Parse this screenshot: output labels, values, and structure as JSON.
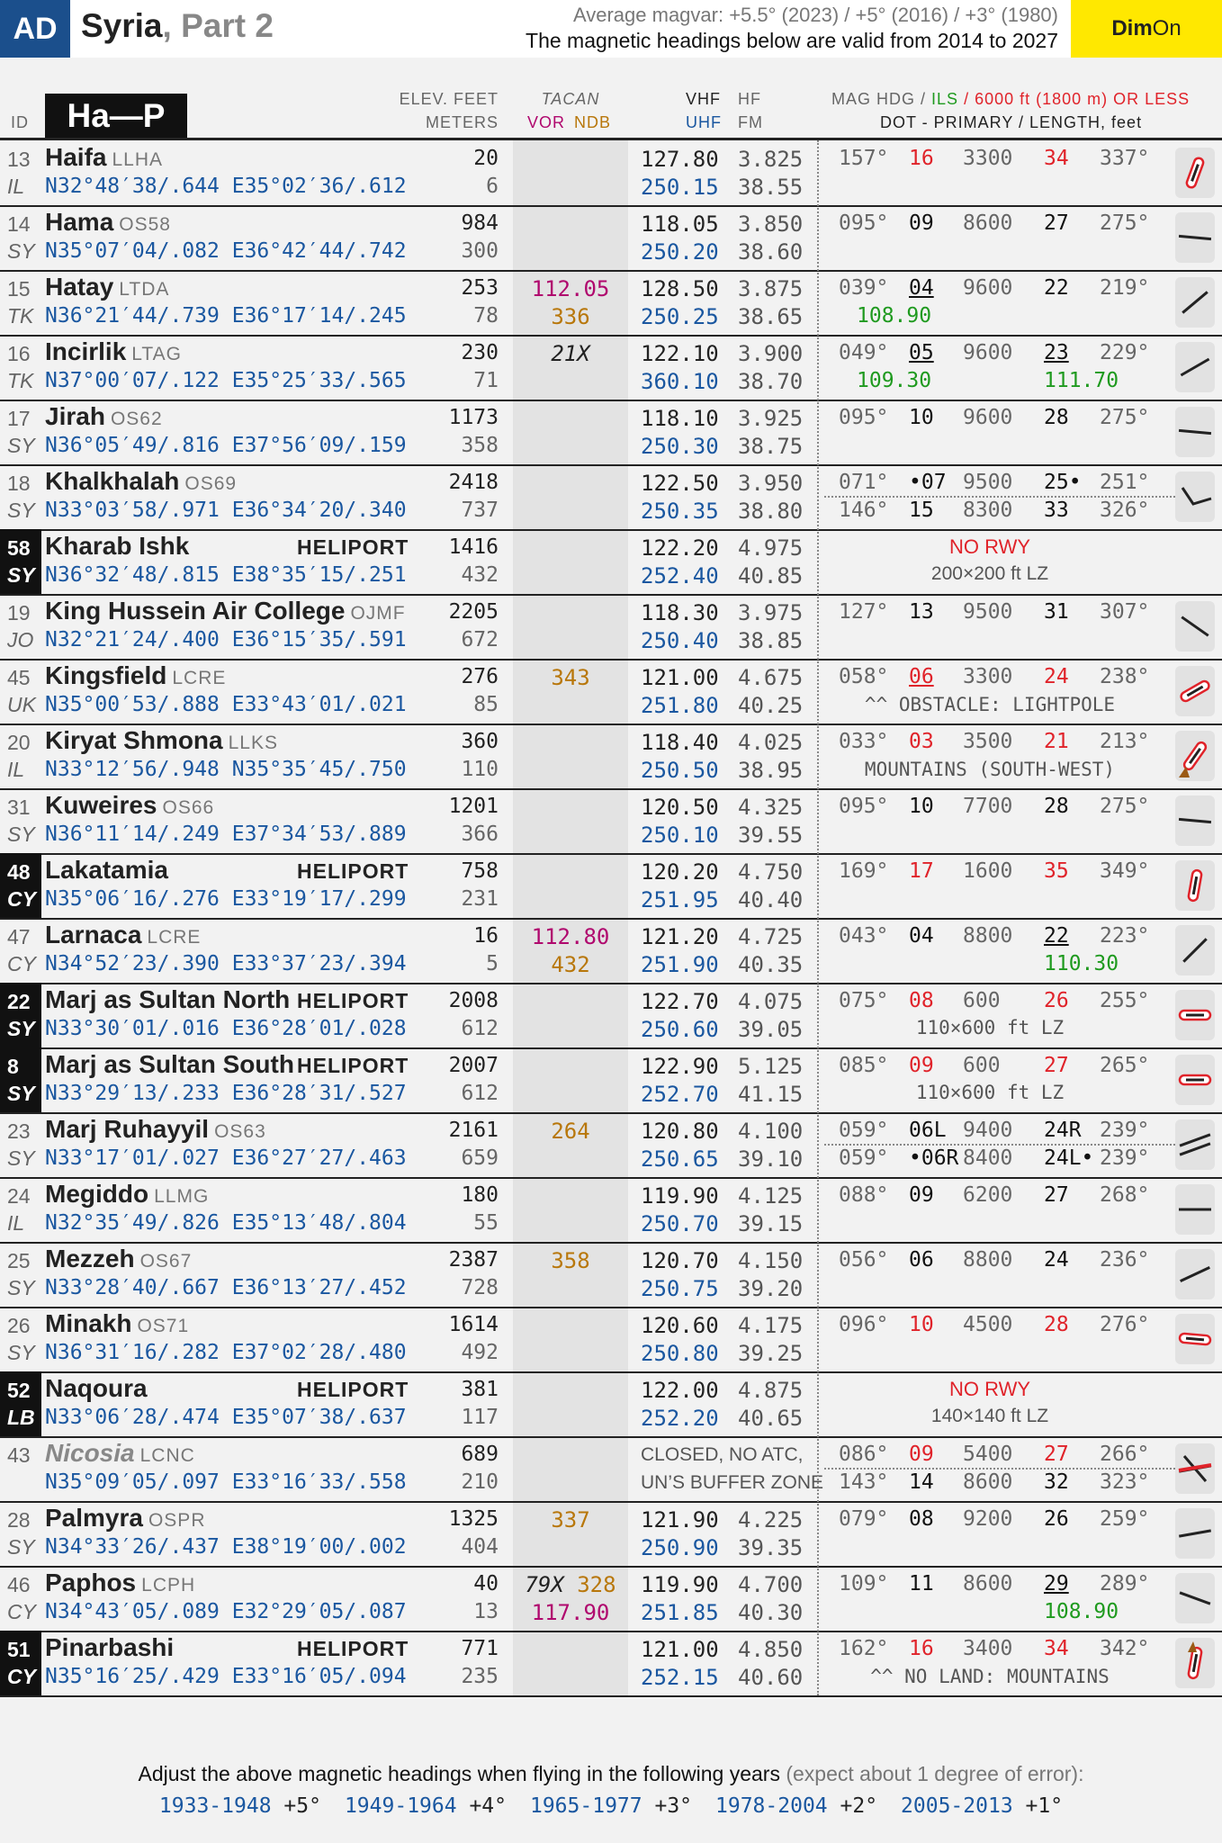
{
  "header": {
    "badge": "AD",
    "title": "Syria",
    "subtitle": ", Part 2",
    "magvar_line1": "Average magvar: +5.5° (2023) / +5° (2016) /  +3° (1980)",
    "magvar_line2": "The magnetic headings below are valid from 2014 to 2027",
    "dim_label": "Dim",
    "on_label": "On"
  },
  "columns": {
    "id": "ID",
    "range": "Ha—P",
    "elev_top": "ELEV. FEET",
    "elev_bottom": "METERS",
    "tacan_top": "TACAN",
    "vor": "VOR",
    "ndb": "NDB",
    "vhf": "VHF",
    "hf": "HF",
    "uhf": "UHF",
    "fm": "FM",
    "mag_hdg": "MAG HDG /",
    "ils": "ILS",
    "limit": "/ 6000 ft (1800 m) OR LESS",
    "dot_legend": "DOT - PRIMARY / LENGTH, feet"
  },
  "rows": [
    {
      "num": "13",
      "country": "IL",
      "name": "Haifa",
      "icao": "LLHA",
      "lat": "N32°48′38/.644",
      "lon": "E35°02′36/.612",
      "elev_ft": "20",
      "elev_m": "6",
      "vhf": "127.80",
      "hf": "3.825",
      "uhf": "250.15",
      "fm": "38.55",
      "rwy": {
        "h1": "157°",
        "e1": "16",
        "len": "3300",
        "e2": "34",
        "h2": "337°"
      }
    },
    {
      "num": "14",
      "country": "SY",
      "name": "Hama",
      "icao": "OS58",
      "lat": "N35°07′04/.082",
      "lon": "E36°42′44/.742",
      "elev_ft": "984",
      "elev_m": "300",
      "vhf": "118.05",
      "hf": "3.850",
      "uhf": "250.20",
      "fm": "38.60",
      "rwy": {
        "h1": "095°",
        "e1": "09",
        "len": "8600",
        "e2": "27",
        "h2": "275°"
      }
    },
    {
      "num": "15",
      "country": "TK",
      "name": "Hatay",
      "icao": "LTDA",
      "lat": "N36°21′44/.739",
      "lon": "E36°17′14/.245",
      "elev_ft": "253",
      "elev_m": "78",
      "vor": "112.05",
      "ndb": "336",
      "vhf": "128.50",
      "hf": "3.875",
      "uhf": "250.25",
      "fm": "38.65",
      "rwy": {
        "h1": "039°",
        "e1": "04",
        "len": "9600",
        "e2": "22",
        "h2": "219°",
        "ils1": "108.90"
      }
    },
    {
      "num": "16",
      "country": "TK",
      "name": "Incirlik",
      "icao": "LTAG",
      "lat": "N37°00′07/.122",
      "lon": "E35°25′33/.565",
      "elev_ft": "230",
      "elev_m": "71",
      "tacan": "21X",
      "vhf": "122.10",
      "hf": "3.900",
      "uhf": "360.10",
      "fm": "38.70",
      "rwy": {
        "h1": "049°",
        "e1": "05",
        "len": "9600",
        "e2": "23",
        "h2": "229°",
        "ils1": "109.30",
        "ils2": "111.70"
      }
    },
    {
      "num": "17",
      "country": "SY",
      "name": "Jirah",
      "icao": "OS62",
      "lat": "N36°05′49/.816",
      "lon": "E37°56′09/.159",
      "elev_ft": "1173",
      "elev_m": "358",
      "vhf": "118.10",
      "hf": "3.925",
      "uhf": "250.30",
      "fm": "38.75",
      "rwy": {
        "h1": "095°",
        "e1": "10",
        "len": "9600",
        "e2": "28",
        "h2": "275°"
      }
    },
    {
      "num": "18",
      "country": "SY",
      "name": "Khalkhalah",
      "icao": "OS69",
      "lat": "N33°03′58/.971",
      "lon": "E36°34′20/.340",
      "elev_ft": "2418",
      "elev_m": "737",
      "vhf": "122.50",
      "hf": "3.950",
      "uhf": "250.35",
      "fm": "38.80",
      "rwy": {
        "h1": "071°",
        "e1": "•07",
        "len": "9500",
        "e2": "25•",
        "h2": "251°"
      },
      "rwy2": {
        "h1": "146°",
        "e1": "15",
        "len": "8300",
        "e2": "33",
        "h2": "326°"
      }
    },
    {
      "num": "58",
      "country": "SY",
      "name": "Kharab Ishk",
      "heli": true,
      "heli_label": "HELIPORT",
      "lat": "N36°32′48/.815",
      "lon": "E38°35′15/.251",
      "elev_ft": "1416",
      "elev_m": "432",
      "vhf": "122.20",
      "hf": "4.975",
      "uhf": "252.40",
      "fm": "40.85",
      "norwy": "NO RWY",
      "lz": "200×200 ft LZ"
    },
    {
      "num": "19",
      "country": "JO",
      "name": "King Hussein Air College",
      "icao": "OJMF",
      "lat": "N32°21′24/.400",
      "lon": "E36°15′35/.591",
      "elev_ft": "2205",
      "elev_m": "672",
      "vhf": "118.30",
      "hf": "3.975",
      "uhf": "250.40",
      "fm": "38.85",
      "rwy": {
        "h1": "127°",
        "e1": "13",
        "len": "9500",
        "e2": "31",
        "h2": "307°"
      }
    },
    {
      "num": "45",
      "country": "UK",
      "name": "Kingsfield",
      "icao": "LCRE",
      "lat": "N35°00′53/.888",
      "lon": "E33°43′01/.021",
      "elev_ft": "276",
      "elev_m": "85",
      "ndb": "343",
      "vhf": "121.00",
      "hf": "4.675",
      "uhf": "251.80",
      "fm": "40.25",
      "rwy": {
        "h1": "058°",
        "e1": "06",
        "len": "3300",
        "e2": "24",
        "h2": "238°"
      },
      "note": "^^ OBSTACLE: LIGHTPOLE"
    },
    {
      "num": "20",
      "country": "IL",
      "name": "Kiryat Shmona",
      "icao": "LLKS",
      "lat": "N33°12′56/.948",
      "lon": "N35°35′45/.750",
      "elev_ft": "360",
      "elev_m": "110",
      "vhf": "118.40",
      "hf": "4.025",
      "uhf": "250.50",
      "fm": "38.95",
      "rwy": {
        "h1": "033°",
        "e1": "03",
        "len": "3500",
        "e2": "21",
        "h2": "213°"
      },
      "note": "MOUNTAINS (SOUTH-WEST)"
    },
    {
      "num": "31",
      "country": "SY",
      "name": "Kuweires",
      "icao": "OS66",
      "lat": "N36°11′14/.249",
      "lon": "E37°34′53/.889",
      "elev_ft": "1201",
      "elev_m": "366",
      "vhf": "120.50",
      "hf": "4.325",
      "uhf": "250.10",
      "fm": "39.55",
      "rwy": {
        "h1": "095°",
        "e1": "10",
        "len": "7700",
        "e2": "28",
        "h2": "275°"
      }
    },
    {
      "num": "48",
      "country": "CY",
      "name": "Lakatamia",
      "heli": true,
      "heli_label": "HELIPORT",
      "lat": "N35°06′16/.276",
      "lon": "E33°19′17/.299",
      "elev_ft": "758",
      "elev_m": "231",
      "vhf": "120.20",
      "hf": "4.750",
      "uhf": "251.95",
      "fm": "40.40",
      "rwy": {
        "h1": "169°",
        "e1": "17",
        "len": "1600",
        "e2": "35",
        "h2": "349°"
      }
    },
    {
      "num": "47",
      "country": "CY",
      "name": "Larnaca",
      "icao": "LCRE",
      "lat": "N34°52′23/.390",
      "lon": "E33°37′23/.394",
      "elev_ft": "16",
      "elev_m": "5",
      "vor": "112.80",
      "ndb": "432",
      "vhf": "121.20",
      "hf": "4.725",
      "uhf": "251.90",
      "fm": "40.35",
      "rwy": {
        "h1": "043°",
        "e1": "04",
        "len": "8800",
        "e2": "22",
        "h2": "223°",
        "ils2": "110.30"
      }
    },
    {
      "num": "22",
      "country": "SY",
      "name": "Marj as Sultan North",
      "heli": true,
      "heli_label": "HELIPORT",
      "lat": "N33°30′01/.016",
      "lon": "E36°28′01/.028",
      "elev_ft": "2008",
      "elev_m": "612",
      "vhf": "122.70",
      "hf": "4.075",
      "uhf": "250.60",
      "fm": "39.05",
      "rwy": {
        "h1": "075°",
        "e1": "08",
        "len": "600",
        "e2": "26",
        "h2": "255°"
      },
      "lz": "110×600 ft LZ"
    },
    {
      "num": "8",
      "country": "SY",
      "name": "Marj as Sultan South",
      "heli": true,
      "heli_label": "HELIPORT",
      "lat": "N33°29′13/.233",
      "lon": "E36°28′31/.527",
      "elev_ft": "2007",
      "elev_m": "612",
      "vhf": "122.90",
      "hf": "5.125",
      "uhf": "252.70",
      "fm": "41.15",
      "rwy": {
        "h1": "085°",
        "e1": "09",
        "len": "600",
        "e2": "27",
        "h2": "265°"
      },
      "lz": "110×600 ft LZ"
    },
    {
      "num": "23",
      "country": "SY",
      "name": "Marj Ruhayyil",
      "icao": "OS63",
      "lat": "N33°17′01/.027",
      "lon": "E36°27′27/.463",
      "elev_ft": "2161",
      "elev_m": "659",
      "ndb": "264",
      "vhf": "120.80",
      "hf": "4.100",
      "uhf": "250.65",
      "fm": "39.10",
      "rwy": {
        "h1": "059°",
        "e1": "06L",
        "len": "9400",
        "e2": "24R",
        "h2": "239°"
      },
      "rwy2": {
        "h1": "059°",
        "e1": "•06R",
        "len": "8400",
        "e2": "24L•",
        "h2": "239°"
      }
    },
    {
      "num": "24",
      "country": "IL",
      "name": "Megiddo",
      "icao": "LLMG",
      "lat": "N32°35′49/.826",
      "lon": "E35°13′48/.804",
      "elev_ft": "180",
      "elev_m": "55",
      "vhf": "119.90",
      "hf": "4.125",
      "uhf": "250.70",
      "fm": "39.15",
      "rwy": {
        "h1": "088°",
        "e1": "09",
        "len": "6200",
        "e2": "27",
        "h2": "268°"
      }
    },
    {
      "num": "25",
      "country": "SY",
      "name": "Mezzeh",
      "icao": "OS67",
      "lat": "N33°28′40/.667",
      "lon": "E36°13′27/.452",
      "elev_ft": "2387",
      "elev_m": "728",
      "ndb": "358",
      "vhf": "120.70",
      "hf": "4.150",
      "uhf": "250.75",
      "fm": "39.20",
      "rwy": {
        "h1": "056°",
        "e1": "06",
        "len": "8800",
        "e2": "24",
        "h2": "236°"
      }
    },
    {
      "num": "26",
      "country": "SY",
      "name": "Minakh",
      "icao": "OS71",
      "lat": "N36°31′16/.282",
      "lon": "E37°02′28/.480",
      "elev_ft": "1614",
      "elev_m": "492",
      "vhf": "120.60",
      "hf": "4.175",
      "uhf": "250.80",
      "fm": "39.25",
      "rwy": {
        "h1": "096°",
        "e1": "10",
        "len": "4500",
        "e2": "28",
        "h2": "276°"
      }
    },
    {
      "num": "52",
      "country": "LB",
      "name": "Naqoura",
      "heli": true,
      "heli_label": "HELIPORT",
      "lat": "N33°06′28/.474",
      "lon": "E35°07′38/.637",
      "elev_ft": "381",
      "elev_m": "117",
      "vhf": "122.00",
      "hf": "4.875",
      "uhf": "252.20",
      "fm": "40.65",
      "norwy": "NO RWY",
      "lz": "140×140 ft LZ"
    },
    {
      "num": "43",
      "country": "",
      "name": "Nicosia",
      "icao": "LCNC",
      "gray": true,
      "lat": "N35°09′05/.097",
      "lon": "E33°16′33/.558",
      "elev_ft": "689",
      "elev_m": "210",
      "closed1": "CLOSED, NO ATC,",
      "closed2": "UN’S BUFFER ZONE",
      "rwy": {
        "h1": "086°",
        "e1": "09",
        "len": "5400",
        "e2": "27",
        "h2": "266°"
      },
      "rwy2": {
        "h1": "143°",
        "e1": "14",
        "len": "8600",
        "e2": "32",
        "h2": "323°"
      }
    },
    {
      "num": "28",
      "country": "SY",
      "name": "Palmyra",
      "icao": "OSPR",
      "lat": "N34°33′26/.437",
      "lon": "E38°19′00/.002",
      "elev_ft": "1325",
      "elev_m": "404",
      "ndb": "337",
      "vhf": "121.90",
      "hf": "4.225",
      "uhf": "250.90",
      "fm": "39.35",
      "rwy": {
        "h1": "079°",
        "e1": "08",
        "len": "9200",
        "e2": "26",
        "h2": "259°"
      }
    },
    {
      "num": "46",
      "country": "CY",
      "name": "Paphos",
      "icao": "LCPH",
      "lat": "N34°43′05/.089",
      "lon": "E32°29′05/.087",
      "elev_ft": "40",
      "elev_m": "13",
      "tacan": "79X",
      "ndb": "328",
      "vor": "117.90",
      "vhf": "119.90",
      "hf": "4.700",
      "uhf": "251.85",
      "fm": "40.30",
      "rwy": {
        "h1": "109°",
        "e1": "11",
        "len": "8600",
        "e2": "29",
        "h2": "289°",
        "ils2": "108.90"
      }
    },
    {
      "num": "51",
      "country": "CY",
      "name": "Pinarbashi",
      "heli": true,
      "heli_label": "HELIPORT",
      "lat": "N35°16′25/.429",
      "lon": "E33°16′05/.094",
      "elev_ft": "771",
      "elev_m": "235",
      "vhf": "121.00",
      "hf": "4.850",
      "uhf": "252.15",
      "fm": "40.60",
      "rwy": {
        "h1": "162°",
        "e1": "16",
        "len": "3400",
        "e2": "34",
        "h2": "342°"
      },
      "note": "^^ NO LAND: MOUNTAINS"
    }
  ],
  "footer": {
    "line1": "Adjust the above magnetic headings when flying in the following years",
    "line1_hint": "(expect about 1 degree of error):",
    "adjustments": [
      {
        "years": "1933-1948",
        "adj": "+5°"
      },
      {
        "years": "1949-1964",
        "adj": "+4°"
      },
      {
        "years": "1965-1977",
        "adj": "+3°"
      },
      {
        "years": "1978-2004",
        "adj": "+2°"
      },
      {
        "years": "2005-2013",
        "adj": "+1°"
      }
    ]
  },
  "colors": {
    "accent_blue": "#1b4f8c",
    "coord_blue": "#1a57a0",
    "red": "#e0232a",
    "green": "#1f9a1f",
    "vor_purple": "#b0086e",
    "ndb_orange": "#b8770b",
    "dim_yellow": "#ffe800"
  }
}
